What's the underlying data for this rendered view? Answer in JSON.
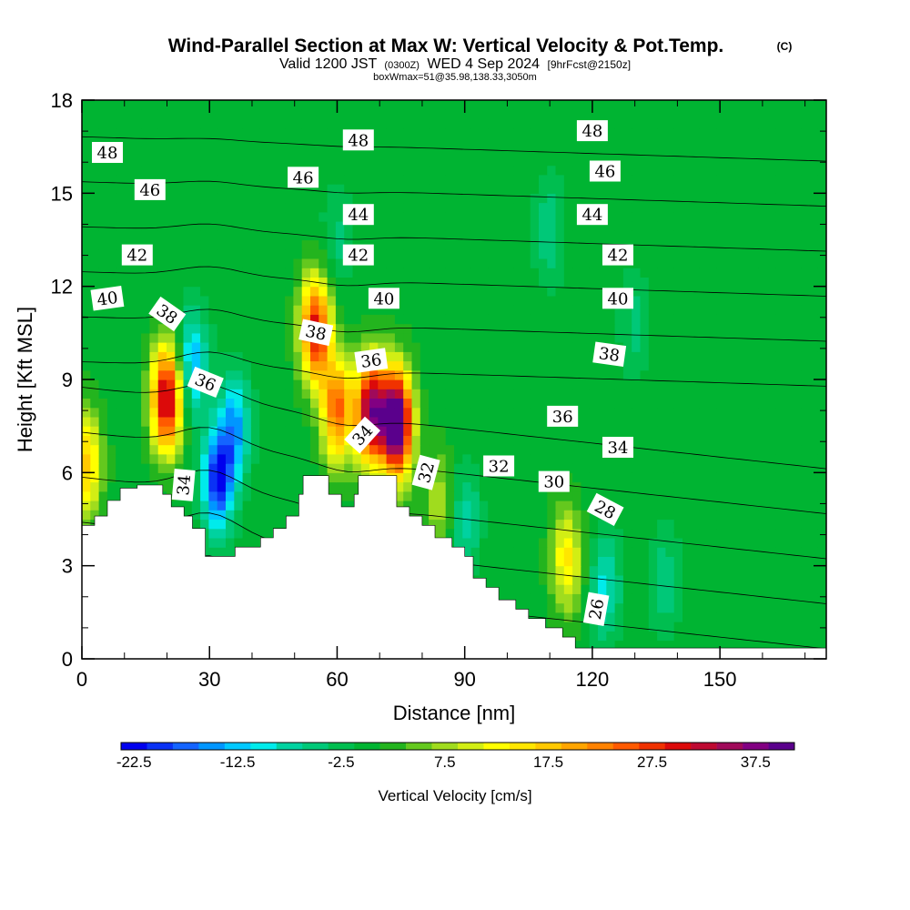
{
  "header": {
    "title": "Wind-Parallel Section at Max W: Vertical Velocity & Pot.Temp.",
    "copyright": "(C)",
    "valid_prefix": "Valid 1200 JST",
    "valid_utc": "(0300Z)",
    "valid_date": "WED 4 Sep 2024",
    "forecast": "[9hrFcst@2150z]",
    "boxline": "boxWmax=51@35.98,138.33,3050m"
  },
  "chart_data": {
    "type": "heatmap",
    "title": "Wind-Parallel Section at Max W: Vertical Velocity & Pot.Temp.",
    "xlabel": "Distance [nm]",
    "ylabel": "Height [Kft MSL]",
    "xlim": [
      0,
      175
    ],
    "ylim": [
      0,
      18
    ],
    "x_ticks": [
      "0",
      "30",
      "60",
      "90",
      "120",
      "150"
    ],
    "y_ticks": [
      "0",
      "3",
      "6",
      "9",
      "12",
      "15",
      "18"
    ],
    "colorbar": {
      "label": "Vertical Velocity [cm/s]",
      "tick_labels": [
        "-22.5",
        "-12.5",
        "-2.5",
        "7.5",
        "17.5",
        "27.5",
        "37.5"
      ],
      "colors": [
        "#0000ee",
        "#0a32f5",
        "#1464ff",
        "#0096ff",
        "#00c8ff",
        "#00ebeb",
        "#00d2a0",
        "#00c878",
        "#00be50",
        "#00b432",
        "#23b41e",
        "#64c81e",
        "#a0dc1e",
        "#d2ee14",
        "#ffff00",
        "#ffe600",
        "#ffc800",
        "#ffa500",
        "#ff8200",
        "#ff5a00",
        "#f03200",
        "#dc0a0a",
        "#be0a32",
        "#a00a5a",
        "#820082",
        "#5a008c"
      ]
    },
    "terrain": [
      [
        0,
        4.3
      ],
      [
        3,
        4.3
      ],
      [
        3,
        4.6
      ],
      [
        6,
        4.6
      ],
      [
        6,
        5.1
      ],
      [
        9,
        5.1
      ],
      [
        9,
        5.5
      ],
      [
        13,
        5.5
      ],
      [
        13,
        5.6
      ],
      [
        19,
        5.6
      ],
      [
        19,
        5.3
      ],
      [
        21,
        5.3
      ],
      [
        21,
        4.9
      ],
      [
        24,
        4.9
      ],
      [
        24,
        4.6
      ],
      [
        26,
        4.6
      ],
      [
        26,
        4.2
      ],
      [
        29,
        4.2
      ],
      [
        29,
        3.3
      ],
      [
        36,
        3.3
      ],
      [
        36,
        3.6
      ],
      [
        42,
        3.6
      ],
      [
        42,
        3.9
      ],
      [
        45,
        3.9
      ],
      [
        45,
        4.2
      ],
      [
        48,
        4.2
      ],
      [
        48,
        4.6
      ],
      [
        51,
        4.6
      ],
      [
        51,
        5.3
      ],
      [
        52,
        5.3
      ],
      [
        52,
        5.9
      ],
      [
        58,
        5.9
      ],
      [
        58,
        5.3
      ],
      [
        61,
        5.3
      ],
      [
        61,
        4.9
      ],
      [
        64,
        4.9
      ],
      [
        64,
        5.3
      ],
      [
        65,
        5.3
      ],
      [
        65,
        5.9
      ],
      [
        74,
        5.9
      ],
      [
        74,
        4.9
      ],
      [
        77,
        4.9
      ],
      [
        77,
        4.6
      ],
      [
        80,
        4.6
      ],
      [
        80,
        4.3
      ],
      [
        83,
        4.3
      ],
      [
        83,
        3.9
      ],
      [
        87,
        3.9
      ],
      [
        87,
        3.6
      ],
      [
        90,
        3.6
      ],
      [
        90,
        3.3
      ],
      [
        92,
        3.3
      ],
      [
        92,
        2.6
      ],
      [
        95,
        2.6
      ],
      [
        95,
        2.3
      ],
      [
        98,
        2.3
      ],
      [
        98,
        1.9
      ],
      [
        102,
        1.9
      ],
      [
        102,
        1.6
      ],
      [
        105,
        1.6
      ],
      [
        105,
        1.3
      ],
      [
        109,
        1.3
      ],
      [
        109,
        1.0
      ],
      [
        113,
        1.0
      ],
      [
        113,
        0.7
      ],
      [
        116,
        0.7
      ],
      [
        116,
        0.35
      ],
      [
        175,
        0.35
      ]
    ],
    "velocity_features": [
      {
        "x": 1,
        "y": 6.3,
        "w": 17
      },
      {
        "x": 20,
        "y": 8.4,
        "w": 34
      },
      {
        "x": 26,
        "y": 9.5,
        "w": -14
      },
      {
        "x": 32,
        "y": 5.8,
        "w": -22.5
      },
      {
        "x": 36,
        "y": 7.5,
        "w": -14
      },
      {
        "x": 55,
        "y": 10.6,
        "w": 30
      },
      {
        "x": 60,
        "y": 8.0,
        "w": 24
      },
      {
        "x": 68,
        "y": 8.0,
        "w": 36
      },
      {
        "x": 74,
        "y": 7.6,
        "w": 45
      },
      {
        "x": 84,
        "y": 5.0,
        "w": 8
      },
      {
        "x": 90,
        "y": 4.5,
        "w": -8
      },
      {
        "x": 114,
        "y": 3.2,
        "w": 14
      },
      {
        "x": 123,
        "y": 2.3,
        "w": -10
      },
      {
        "x": 137,
        "y": 2.5,
        "w": -6
      },
      {
        "x": 60,
        "y": 13.5,
        "w": -5
      },
      {
        "x": 110,
        "y": 13.8,
        "w": -6
      },
      {
        "x": 130,
        "y": 10.8,
        "w": -5
      }
    ],
    "theta_levels": [
      26,
      28,
      30,
      32,
      34,
      36,
      38,
      40,
      42,
      44,
      46,
      48
    ],
    "theta_labels": [
      {
        "text": "48",
        "x": 6,
        "y": 16.3,
        "rot": 0
      },
      {
        "text": "46",
        "x": 16,
        "y": 15.1,
        "rot": 0
      },
      {
        "text": "42",
        "x": 13,
        "y": 13.0,
        "rot": 0
      },
      {
        "text": "40",
        "x": 6,
        "y": 11.6,
        "rot": -8
      },
      {
        "text": "38",
        "x": 20,
        "y": 11.1,
        "rot": 35
      },
      {
        "text": "36",
        "x": 29,
        "y": 8.9,
        "rot": 22
      },
      {
        "text": "34",
        "x": 24,
        "y": 5.6,
        "rot": -85
      },
      {
        "text": "48",
        "x": 65,
        "y": 16.7,
        "rot": 0
      },
      {
        "text": "46",
        "x": 52,
        "y": 15.5,
        "rot": 0
      },
      {
        "text": "44",
        "x": 65,
        "y": 14.3,
        "rot": 0
      },
      {
        "text": "42",
        "x": 65,
        "y": 13.0,
        "rot": 0
      },
      {
        "text": "40",
        "x": 71,
        "y": 11.6,
        "rot": 0
      },
      {
        "text": "38",
        "x": 55,
        "y": 10.5,
        "rot": 12
      },
      {
        "text": "36",
        "x": 68,
        "y": 9.6,
        "rot": -8
      },
      {
        "text": "34",
        "x": 66,
        "y": 7.2,
        "rot": -48
      },
      {
        "text": "32",
        "x": 81,
        "y": 6.0,
        "rot": -75
      },
      {
        "text": "32",
        "x": 98,
        "y": 6.2,
        "rot": 0
      },
      {
        "text": "30",
        "x": 111,
        "y": 5.7,
        "rot": 0
      },
      {
        "text": "28",
        "x": 123,
        "y": 4.8,
        "rot": 28
      },
      {
        "text": "26",
        "x": 121,
        "y": 1.6,
        "rot": -80
      },
      {
        "text": "48",
        "x": 120,
        "y": 17.0,
        "rot": 0
      },
      {
        "text": "46",
        "x": 123,
        "y": 15.7,
        "rot": 0
      },
      {
        "text": "44",
        "x": 120,
        "y": 14.3,
        "rot": 0
      },
      {
        "text": "42",
        "x": 126,
        "y": 13.0,
        "rot": 0
      },
      {
        "text": "40",
        "x": 126,
        "y": 11.6,
        "rot": 0
      },
      {
        "text": "38",
        "x": 124,
        "y": 9.8,
        "rot": 8
      },
      {
        "text": "36",
        "x": 113,
        "y": 7.8,
        "rot": 0
      },
      {
        "text": "34",
        "x": 126,
        "y": 6.8,
        "rot": 0
      }
    ]
  }
}
